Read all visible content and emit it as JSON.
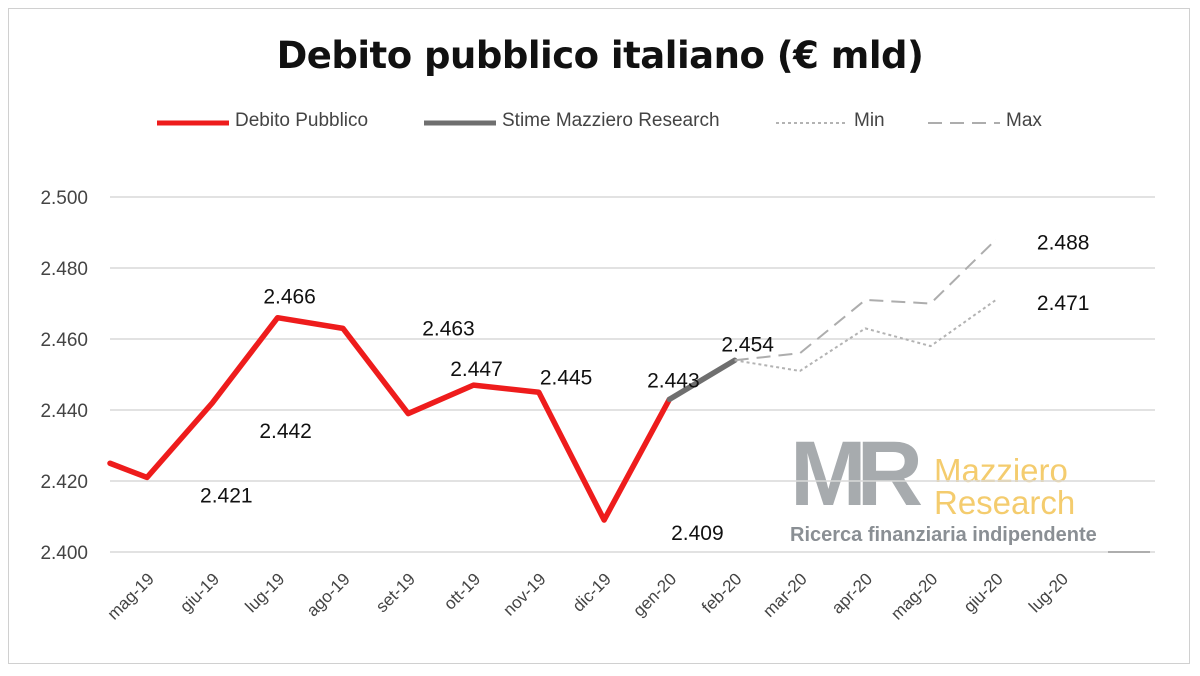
{
  "colors": {
    "debito": "#ee1c1c",
    "stime": "#6f6f6f",
    "min": "#b3b3b3",
    "max": "#adadad",
    "grid": "#d9d9d9",
    "watermark_gray": "#8a8f94",
    "watermark_gold": "#f4cc6e"
  },
  "watermark": {
    "letters": "MR",
    "name_line1": "Mazziero",
    "name_line2": "Research",
    "tagline": "Ricerca finanziaria indipendente"
  },
  "chart_data": {
    "type": "line",
    "title": "Debito pubblico italiano (€ mld)",
    "xlabel": "",
    "ylabel": "",
    "ylim": [
      2400,
      2500
    ],
    "y_ticks": [
      "2.400",
      "2.420",
      "2.440",
      "2.460",
      "2.480",
      "2.500"
    ],
    "y_tick_values": [
      2400,
      2420,
      2440,
      2460,
      2480,
      2500
    ],
    "categories": [
      "mag-19",
      "giu-19",
      "lug-19",
      "ago-19",
      "set-19",
      "ott-19",
      "nov-19",
      "dic-19",
      "gen-20",
      "feb-20",
      "mar-20",
      "apr-20",
      "mag-20",
      "giu-20",
      "lug-20"
    ],
    "grid": true,
    "legend_position": "top",
    "series": [
      {
        "name": "Debito Pubblico",
        "style": "solid-thick",
        "lead_in_value": 2425,
        "values": [
          2421,
          2442,
          2466,
          2463,
          2439,
          2447,
          2445,
          2409,
          2443,
          null,
          null,
          null,
          null,
          null,
          null
        ]
      },
      {
        "name": "Stime Mazziero Research",
        "style": "solid-thick",
        "values": [
          null,
          null,
          null,
          null,
          null,
          null,
          null,
          null,
          2443,
          2454,
          null,
          null,
          null,
          null,
          null
        ]
      },
      {
        "name": "Min",
        "style": "dotted",
        "values": [
          null,
          null,
          null,
          null,
          null,
          null,
          null,
          null,
          null,
          2454,
          2451,
          2463,
          2458,
          2471,
          null
        ]
      },
      {
        "name": "Max",
        "style": "dashed",
        "values": [
          null,
          null,
          null,
          null,
          null,
          null,
          null,
          null,
          null,
          2454,
          2456,
          2471,
          2470,
          2488,
          null
        ]
      }
    ],
    "data_labels": [
      {
        "text": "2.421",
        "category": "giu-19",
        "value": 2421,
        "anchor": "below"
      },
      {
        "text": "2.442",
        "category": "lug-19",
        "value": 2442,
        "anchor": "below"
      },
      {
        "text": "2.466",
        "category": "lug-19",
        "value": 2466,
        "anchor": "above"
      },
      {
        "text": "2.463",
        "category": "set-19",
        "value": 2463,
        "anchor": "right"
      },
      {
        "text": "2.447",
        "category": "ott-19",
        "value": 2447,
        "anchor": "above"
      },
      {
        "text": "2.445",
        "category": "dic-19",
        "value": 2445,
        "anchor": "above"
      },
      {
        "text": "2.409",
        "category": "gen-20",
        "value": 2409,
        "anchor": "below"
      },
      {
        "text": "2.443",
        "category": "gen-20",
        "value": 2443,
        "anchor": "above"
      },
      {
        "text": "2.454",
        "category": "feb-20",
        "value": 2454,
        "anchor": "above"
      },
      {
        "text": "2.488",
        "category": "lug-20",
        "value": 2488,
        "anchor": "above"
      },
      {
        "text": "2.471",
        "category": "lug-20",
        "value": 2471,
        "anchor": "above"
      }
    ]
  }
}
